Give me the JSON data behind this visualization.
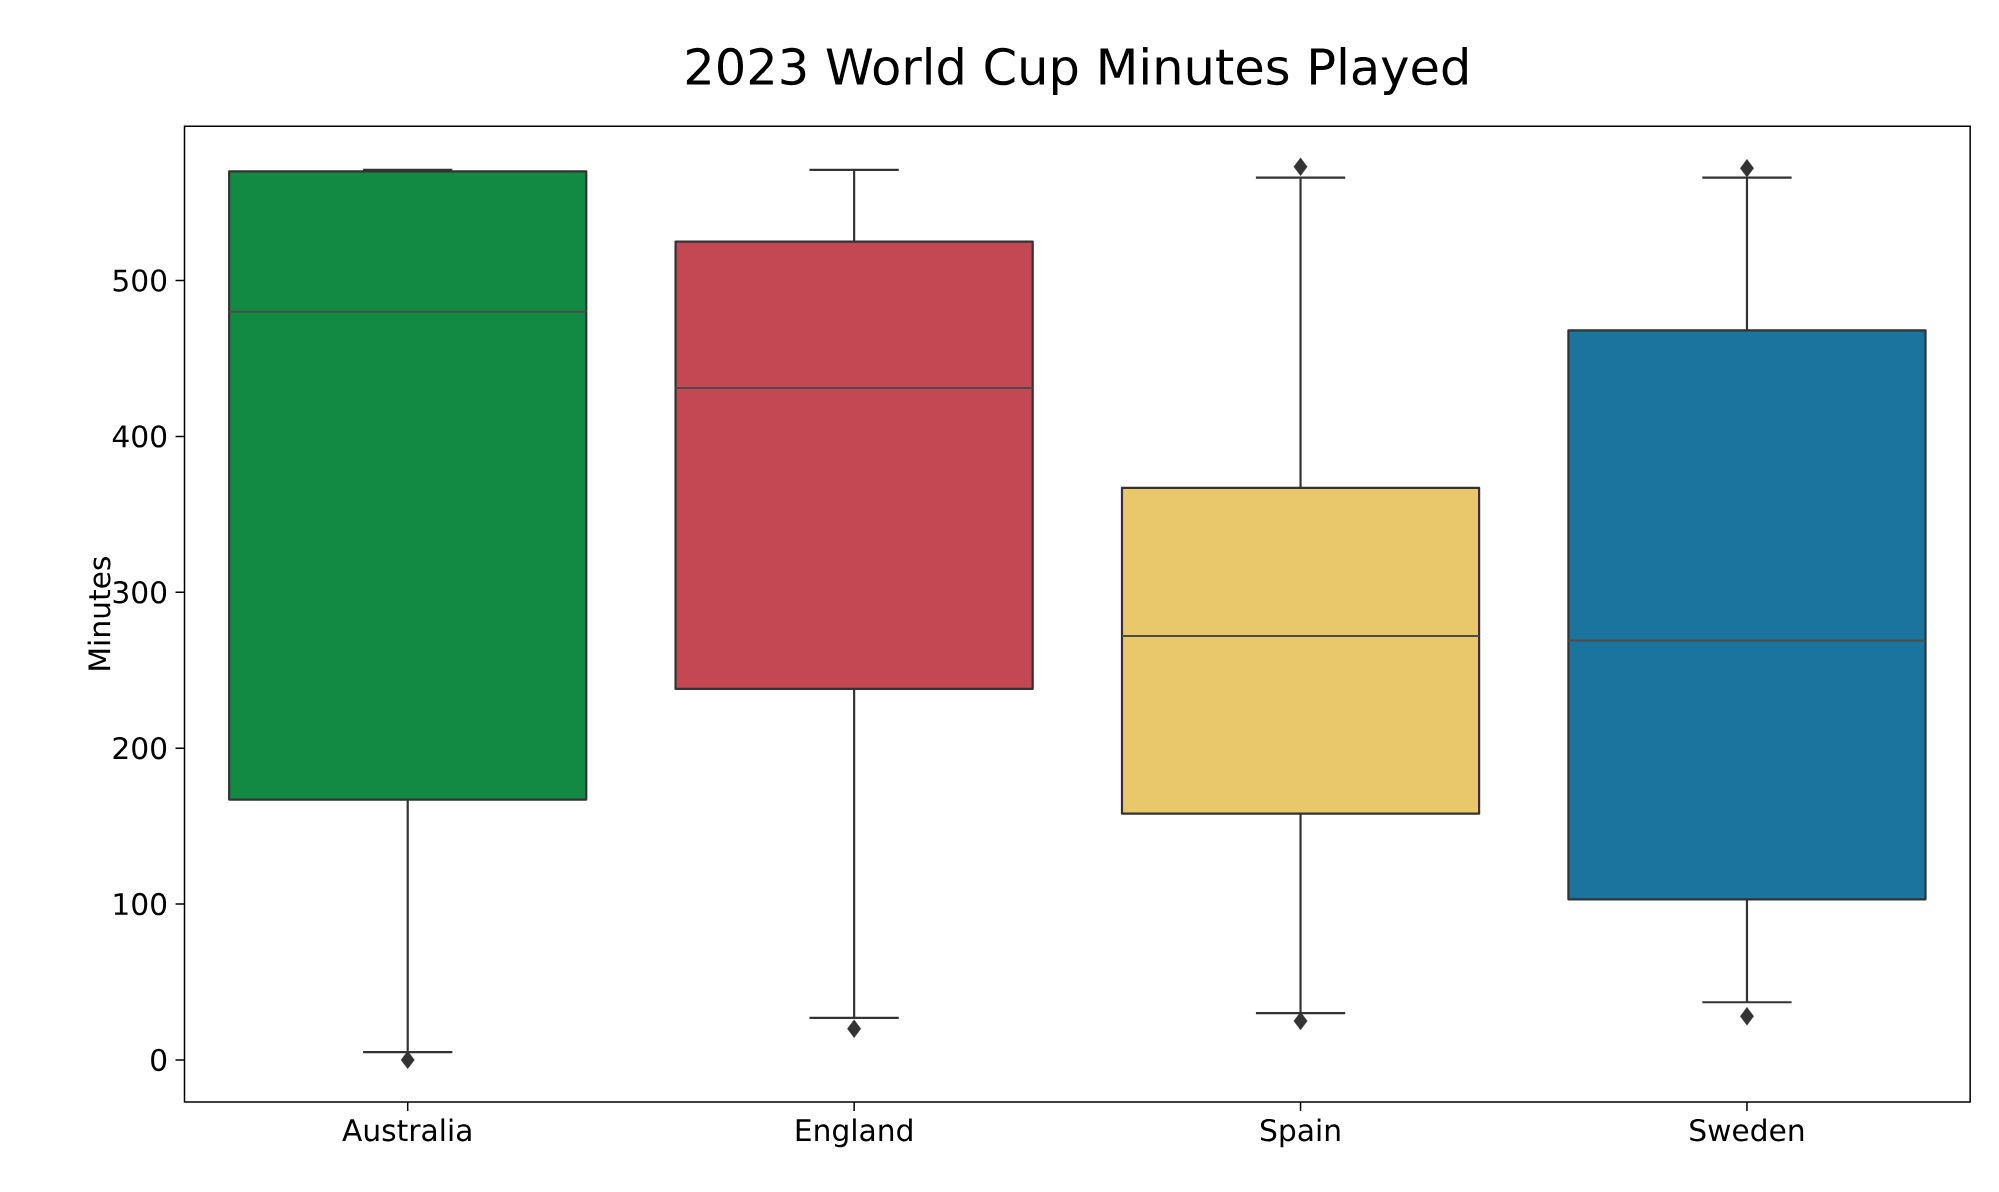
{
  "chart_data": {
    "type": "box",
    "title": "2023 World Cup Minutes Played",
    "ylabel": "Minutes",
    "categories": [
      "Australia",
      "England",
      "Spain",
      "Sweden"
    ],
    "colors": [
      "#138a43",
      "#c44853",
      "#e9c76b",
      "#1b749e"
    ],
    "boxes": [
      {
        "low": 5,
        "q1": 167,
        "median": 480,
        "q3": 570,
        "high": 571,
        "outliers": [
          0
        ]
      },
      {
        "low": 27,
        "q1": 238,
        "median": 431,
        "q3": 525,
        "high": 571,
        "outliers": [
          20
        ]
      },
      {
        "low": 30,
        "q1": 158,
        "median": 272,
        "q3": 367,
        "high": 566,
        "outliers": [
          25,
          573
        ]
      },
      {
        "low": 37,
        "q1": 103,
        "median": 269,
        "q3": 468,
        "high": 566,
        "outliers": [
          28,
          572
        ]
      }
    ],
    "ylim": [
      -27,
      599
    ],
    "yticks": [
      0,
      100,
      200,
      300,
      400,
      500
    ]
  }
}
